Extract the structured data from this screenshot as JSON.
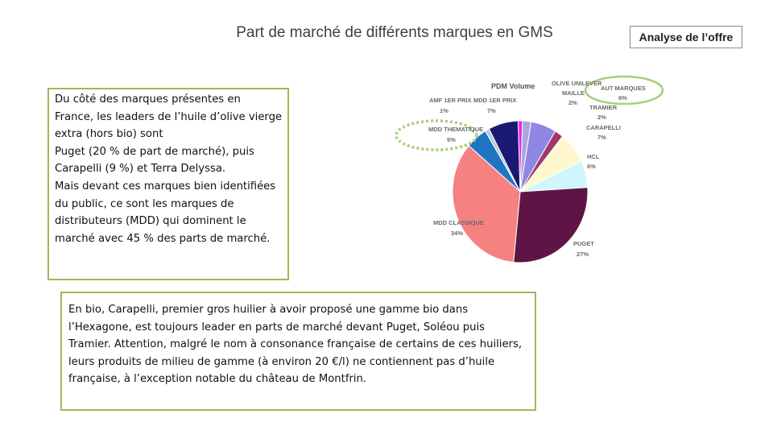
{
  "header": {
    "title": "Part de marché de différents marques en GMS",
    "badge": "Analyse de l’offre"
  },
  "text_blocks": {
    "left": "Du côté des marques présentes en France, les leaders de l’huile d’olive vierge extra (hors bio) sont\n Puget (20 % de part de marché), puis Carapelli (9 %) et Terra Delyssa.\n Mais devant ces marques bien identifiées du public, ce sont les marques de distributeurs (MDD) qui dominent le marché avec 45 % des parts de marché.",
    "bottom": "En bio, Carapelli, premier gros huilier à avoir proposé une gamme bio dans l’Hexagone, est toujours leader en parts de marché devant Puget, Soléou puis Tramier. Attention, malgré le nom à consonance française de certains de ces huiliers, leurs produits de milieu de gamme (à environ 20 €/l) ne contiennent pas d’huile française, à l’exception notable du château de Montfrin."
  },
  "chart_data": {
    "type": "pie",
    "title": "PDM Volume",
    "unit": "%",
    "slices": [
      {
        "label": "OLIVE UNILEVER MAILLE",
        "value": 2,
        "display": "2%",
        "color": "#aba6e0"
      },
      {
        "label": "AUT MARQUES",
        "value": 6,
        "display": "6%",
        "color": "#8f86e5"
      },
      {
        "label": "TRAMIER",
        "value": 2,
        "display": "2%",
        "color": "#a0386a"
      },
      {
        "label": "CARAPELLI",
        "value": 7,
        "display": "7%",
        "color": "#fff7cd"
      },
      {
        "label": "HCL",
        "value": 6,
        "display": "6%",
        "color": "#cef6fb"
      },
      {
        "label": "PUGET",
        "value": 27,
        "display": "27%",
        "color": "#5e1546"
      },
      {
        "label": "MDD CLASSIQUE",
        "value": 34,
        "display": "34%",
        "color": "#f58181"
      },
      {
        "label": "MDD THEMATIQUE",
        "value": 5,
        "display": "5%",
        "color": "#1f74c4"
      },
      {
        "label": "AMF 1ER PRIX",
        "value": 1,
        "display": "1%",
        "color": "#b8c8d8"
      },
      {
        "label": "MDD 1ER PRIX",
        "value": 7,
        "display": "7%",
        "color": "#1b1a72"
      },
      {
        "label": "",
        "value": 1,
        "display": "",
        "color": "#ee22ee"
      }
    ],
    "labels_display": [
      {
        "name": "OLIVE UNILEVER",
        "sub": "MAILLE",
        "value": "2%"
      },
      {
        "name": "AUT MARQUES",
        "value": "6%"
      },
      {
        "name": "TRAMIER",
        "value": "2%"
      },
      {
        "name": "CARAPELLI",
        "value": "7%"
      },
      {
        "name": "HCL",
        "value": "6%"
      },
      {
        "name": "PUGET",
        "value": "27%"
      },
      {
        "name": "MDD CLASSIQUE",
        "value": "34%"
      },
      {
        "name": "MDD THEMATIQUE",
        "value": "5%"
      },
      {
        "name": "AMF 1ER PRIX",
        "value": "1%"
      },
      {
        "name": "MDD 1ER PRIX",
        "value": "7%"
      }
    ],
    "highlight_color": "#a8cf7a"
  }
}
